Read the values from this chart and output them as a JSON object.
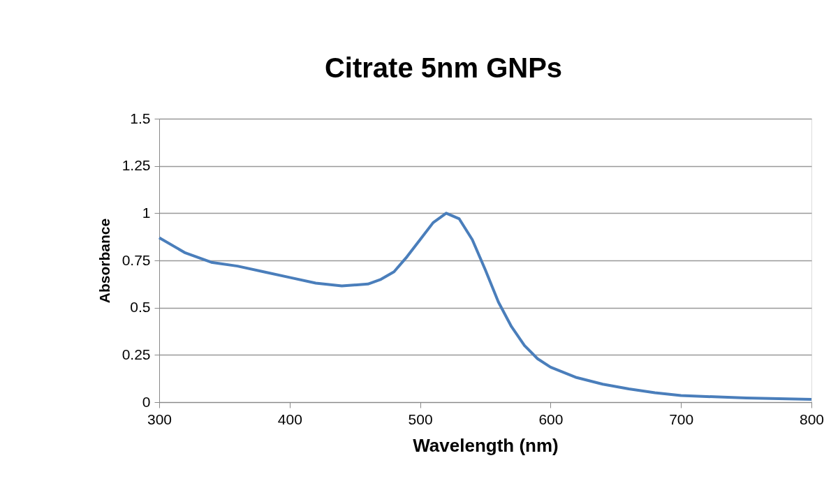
{
  "chart_data": {
    "type": "line",
    "title": "Citrate 5nm GNPs",
    "xlabel": "Wavelength (nm)",
    "ylabel": "Absorbance",
    "x": [
      300,
      320,
      340,
      360,
      380,
      400,
      420,
      440,
      460,
      470,
      480,
      490,
      500,
      510,
      520,
      530,
      540,
      550,
      560,
      570,
      580,
      590,
      600,
      620,
      640,
      660,
      680,
      700,
      750,
      800
    ],
    "series": [
      {
        "color": "#4a7ebb",
        "values": [
          0.87,
          0.79,
          0.74,
          0.72,
          0.69,
          0.66,
          0.63,
          0.615,
          0.625,
          0.65,
          0.69,
          0.77,
          0.86,
          0.95,
          1.0,
          0.97,
          0.86,
          0.7,
          0.53,
          0.4,
          0.3,
          0.23,
          0.185,
          0.13,
          0.095,
          0.07,
          0.05,
          0.035,
          0.022,
          0.015
        ]
      }
    ],
    "xlim": [
      300,
      800
    ],
    "xticks": [
      300,
      400,
      500,
      600,
      700,
      800
    ],
    "ylim": [
      0,
      1.5
    ],
    "yticks": [
      0,
      0.25,
      0.5,
      0.75,
      1,
      1.25,
      1.5
    ],
    "grid": "y",
    "legend": false,
    "marker": "none",
    "line_style": "solid"
  }
}
